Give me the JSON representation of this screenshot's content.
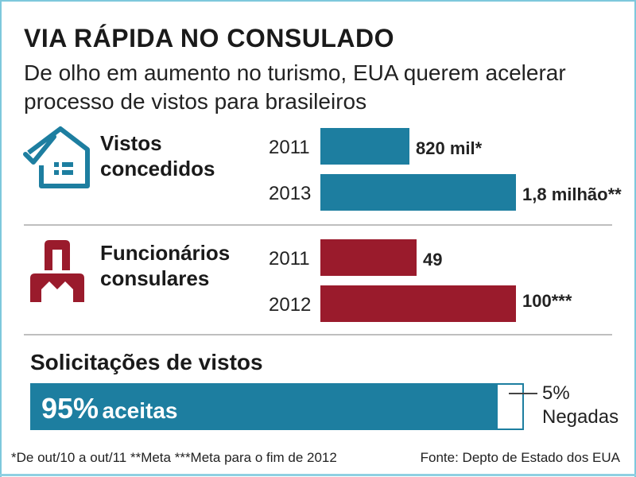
{
  "header": {
    "title": "VIA RÁPIDA NO CONSULADO",
    "subtitle": "De olho em aumento no turismo, EUA querem acelerar processo de vistos para brasileiros"
  },
  "colors": {
    "blue": "#1d7ea0",
    "red": "#9a1b2c"
  },
  "chart_data": [
    {
      "type": "bar",
      "title": "Vistos concedidos",
      "title_lines": [
        "Vistos",
        "concedidos"
      ],
      "icon": "house-check-icon",
      "categories": [
        "2011",
        "2013"
      ],
      "values": [
        820000,
        1800000
      ],
      "value_labels": [
        "820 mil*",
        "1,8 milhão**"
      ],
      "color": "#1d7ea0"
    },
    {
      "type": "bar",
      "title": "Funcionários consulares",
      "title_lines": [
        "Funcionários",
        "consulares"
      ],
      "icon": "person-icon",
      "categories": [
        "2011",
        "2012"
      ],
      "values": [
        49,
        100
      ],
      "value_labels": [
        "49",
        "100***"
      ],
      "color": "#9a1b2c"
    },
    {
      "type": "bar",
      "title": "Solicitações de vistos",
      "segments": [
        {
          "name": "aceitas",
          "value": 95,
          "label_pct": "95%",
          "label_text": "aceitas"
        },
        {
          "name": "Negadas",
          "value": 5,
          "label_pct": "5%",
          "label_text": "Negadas"
        }
      ],
      "color": "#1d7ea0"
    }
  ],
  "footer": {
    "footnote": "*De out/10 a out/11  **Meta ***Meta para o fim de 2012",
    "source": "Fonte: Depto de Estado dos EUA"
  }
}
